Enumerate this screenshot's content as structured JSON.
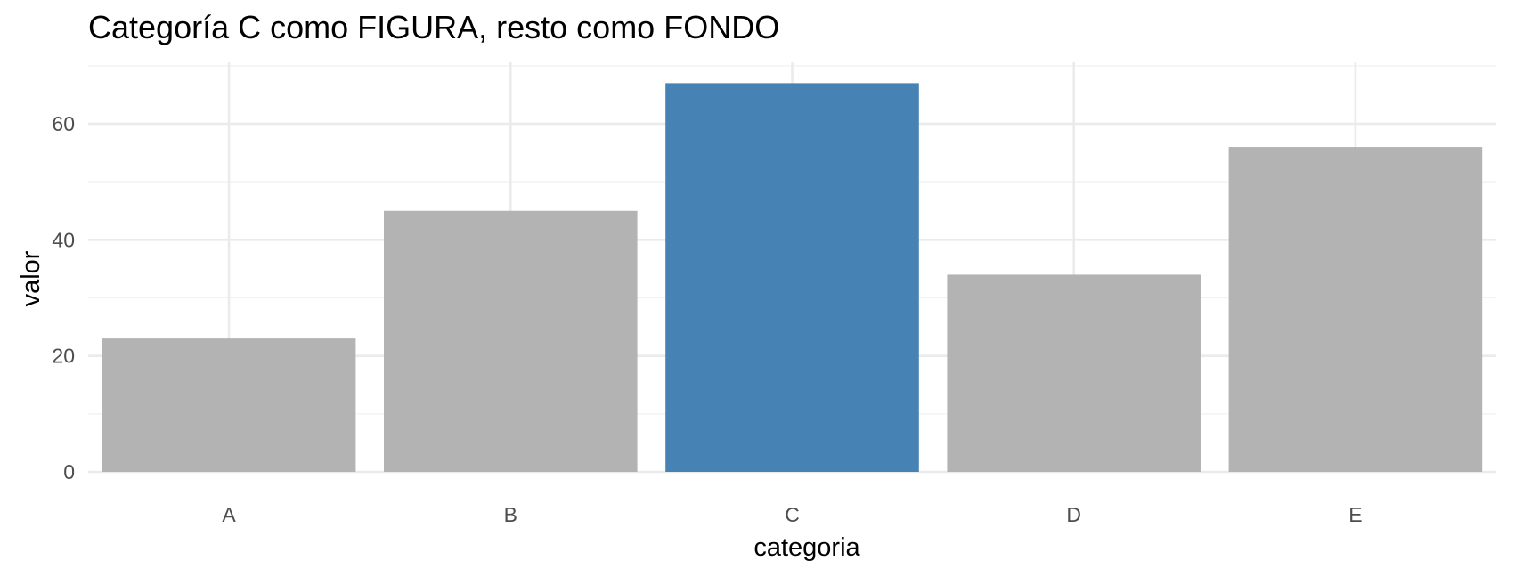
{
  "chart_data": {
    "type": "bar",
    "title": "Categoría C como FIGURA, resto como FONDO",
    "xlabel": "categoria",
    "ylabel": "valor",
    "categories": [
      "A",
      "B",
      "C",
      "D",
      "E"
    ],
    "values": [
      23,
      45,
      67,
      34,
      56
    ],
    "highlight": "C",
    "colors": {
      "figure": "#4682B4",
      "background": "#B3B3B3"
    },
    "ylim": [
      0,
      70
    ],
    "yticks": [
      0,
      20,
      40,
      60
    ],
    "grid": true,
    "legend": "none"
  }
}
